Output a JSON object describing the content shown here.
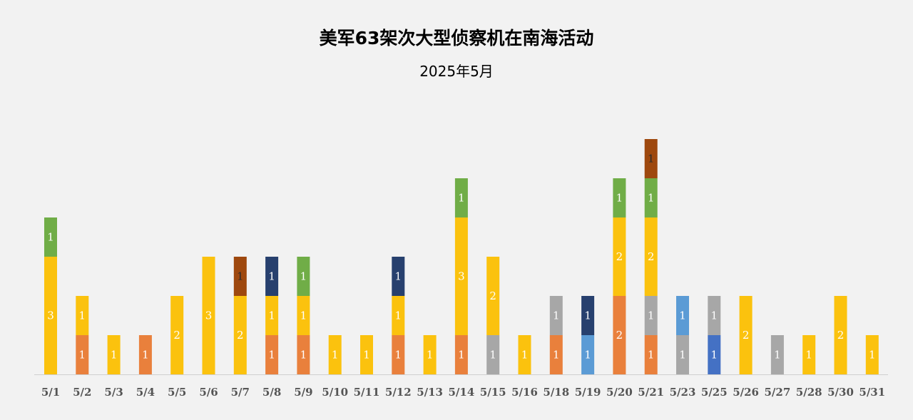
{
  "chart_data": {
    "type": "bar",
    "stacked": true,
    "title": "美军63架次大型侦察机在南海活动",
    "subtitle": "2025年5月",
    "grid": false,
    "legend": "none",
    "ylim": [
      0,
      6
    ],
    "colors": {
      "orange": "#e9803c",
      "yellow": "#fbc20e",
      "gray": "#a7a7a7",
      "lightblue": "#5b9bd5",
      "blue": "#4471c4",
      "navy": "#27406e",
      "green": "#70ad47",
      "brown": "#9e480e"
    },
    "categories": [
      "5/1",
      "5/2",
      "5/3",
      "5/4",
      "5/5",
      "5/6",
      "5/7",
      "5/8",
      "5/9",
      "5/10",
      "5/11",
      "5/12",
      "5/13",
      "5/14",
      "5/15",
      "5/16",
      "5/18",
      "5/19",
      "5/20",
      "5/21",
      "5/23",
      "5/25",
      "5/26",
      "5/27",
      "5/28",
      "5/30",
      "5/31"
    ],
    "stacks": [
      [
        {
          "value": 3,
          "color": "yellow"
        },
        {
          "value": 1,
          "color": "green"
        }
      ],
      [
        {
          "value": 1,
          "color": "orange"
        },
        {
          "value": 1,
          "color": "yellow"
        }
      ],
      [
        {
          "value": 1,
          "color": "yellow"
        }
      ],
      [
        {
          "value": 1,
          "color": "orange"
        }
      ],
      [
        {
          "value": 2,
          "color": "yellow"
        }
      ],
      [
        {
          "value": 3,
          "color": "yellow"
        }
      ],
      [
        {
          "value": 2,
          "color": "yellow"
        },
        {
          "value": 1,
          "color": "brown"
        }
      ],
      [
        {
          "value": 1,
          "color": "orange"
        },
        {
          "value": 1,
          "color": "yellow"
        },
        {
          "value": 1,
          "color": "navy"
        }
      ],
      [
        {
          "value": 1,
          "color": "orange"
        },
        {
          "value": 1,
          "color": "yellow"
        },
        {
          "value": 1,
          "color": "green"
        }
      ],
      [
        {
          "value": 1,
          "color": "yellow"
        }
      ],
      [
        {
          "value": 1,
          "color": "yellow"
        }
      ],
      [
        {
          "value": 1,
          "color": "orange"
        },
        {
          "value": 1,
          "color": "yellow"
        },
        {
          "value": 1,
          "color": "navy"
        }
      ],
      [
        {
          "value": 1,
          "color": "yellow"
        }
      ],
      [
        {
          "value": 1,
          "color": "orange"
        },
        {
          "value": 3,
          "color": "yellow"
        },
        {
          "value": 1,
          "color": "green"
        }
      ],
      [
        {
          "value": 1,
          "color": "gray"
        },
        {
          "value": 2,
          "color": "yellow"
        }
      ],
      [
        {
          "value": 1,
          "color": "yellow"
        }
      ],
      [
        {
          "value": 1,
          "color": "orange"
        },
        {
          "value": 1,
          "color": "gray"
        }
      ],
      [
        {
          "value": 1,
          "color": "lightblue"
        },
        {
          "value": 1,
          "color": "navy"
        }
      ],
      [
        {
          "value": 2,
          "color": "orange"
        },
        {
          "value": 2,
          "color": "yellow"
        },
        {
          "value": 1,
          "color": "green"
        }
      ],
      [
        {
          "value": 1,
          "color": "orange"
        },
        {
          "value": 1,
          "color": "gray"
        },
        {
          "value": 2,
          "color": "yellow"
        },
        {
          "value": 1,
          "color": "green"
        },
        {
          "value": 1,
          "color": "brown"
        }
      ],
      [
        {
          "value": 1,
          "color": "gray"
        },
        {
          "value": 1,
          "color": "lightblue"
        }
      ],
      [
        {
          "value": 1,
          "color": "blue"
        },
        {
          "value": 1,
          "color": "gray"
        }
      ],
      [
        {
          "value": 2,
          "color": "yellow"
        }
      ],
      [
        {
          "value": 1,
          "color": "gray"
        }
      ],
      [
        {
          "value": 1,
          "color": "yellow"
        }
      ],
      [
        {
          "value": 2,
          "color": "yellow"
        }
      ],
      [
        {
          "value": 1,
          "color": "yellow"
        }
      ]
    ]
  }
}
